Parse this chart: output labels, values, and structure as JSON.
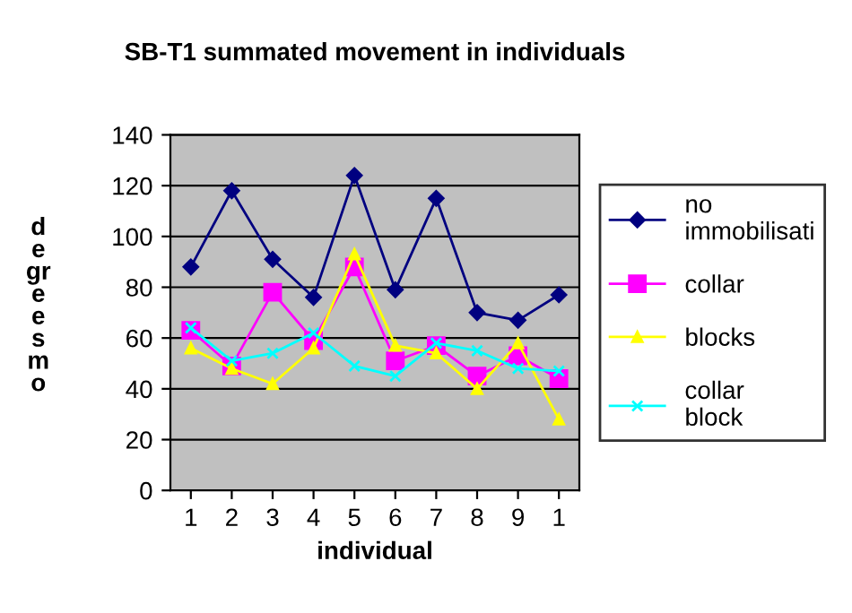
{
  "chart_data": {
    "type": "line",
    "title": "SB-T1 summated movement in individuals",
    "xlabel": "individual",
    "ylabel": "d\ne\ngr\ne\ne\ns\nm\no",
    "categories": [
      "1",
      "2",
      "3",
      "4",
      "5",
      "6",
      "7",
      "8",
      "9",
      "1"
    ],
    "series": [
      {
        "name": "no\nimmobilisati",
        "color": "#000080",
        "marker": "diamond",
        "values": [
          88,
          118,
          91,
          76,
          124,
          79,
          115,
          70,
          67,
          77
        ]
      },
      {
        "name": "collar",
        "color": "#ff00ff",
        "marker": "square",
        "values": [
          63,
          49,
          78,
          59,
          88,
          51,
          57,
          45,
          53,
          44
        ]
      },
      {
        "name": "blocks",
        "color": "#ffff00",
        "marker": "triangle",
        "values": [
          56,
          48,
          42,
          56,
          93,
          57,
          54,
          40,
          58,
          28
        ]
      },
      {
        "name": "collar\nblock",
        "color": "#00ffff",
        "marker": "cross",
        "values": [
          64,
          51,
          54,
          62,
          49,
          45,
          58,
          55,
          48,
          47
        ]
      }
    ],
    "ylim": [
      0,
      140
    ],
    "yticks": [
      0,
      20,
      40,
      60,
      80,
      100,
      120,
      140
    ],
    "grid": "y",
    "legend": "right"
  }
}
